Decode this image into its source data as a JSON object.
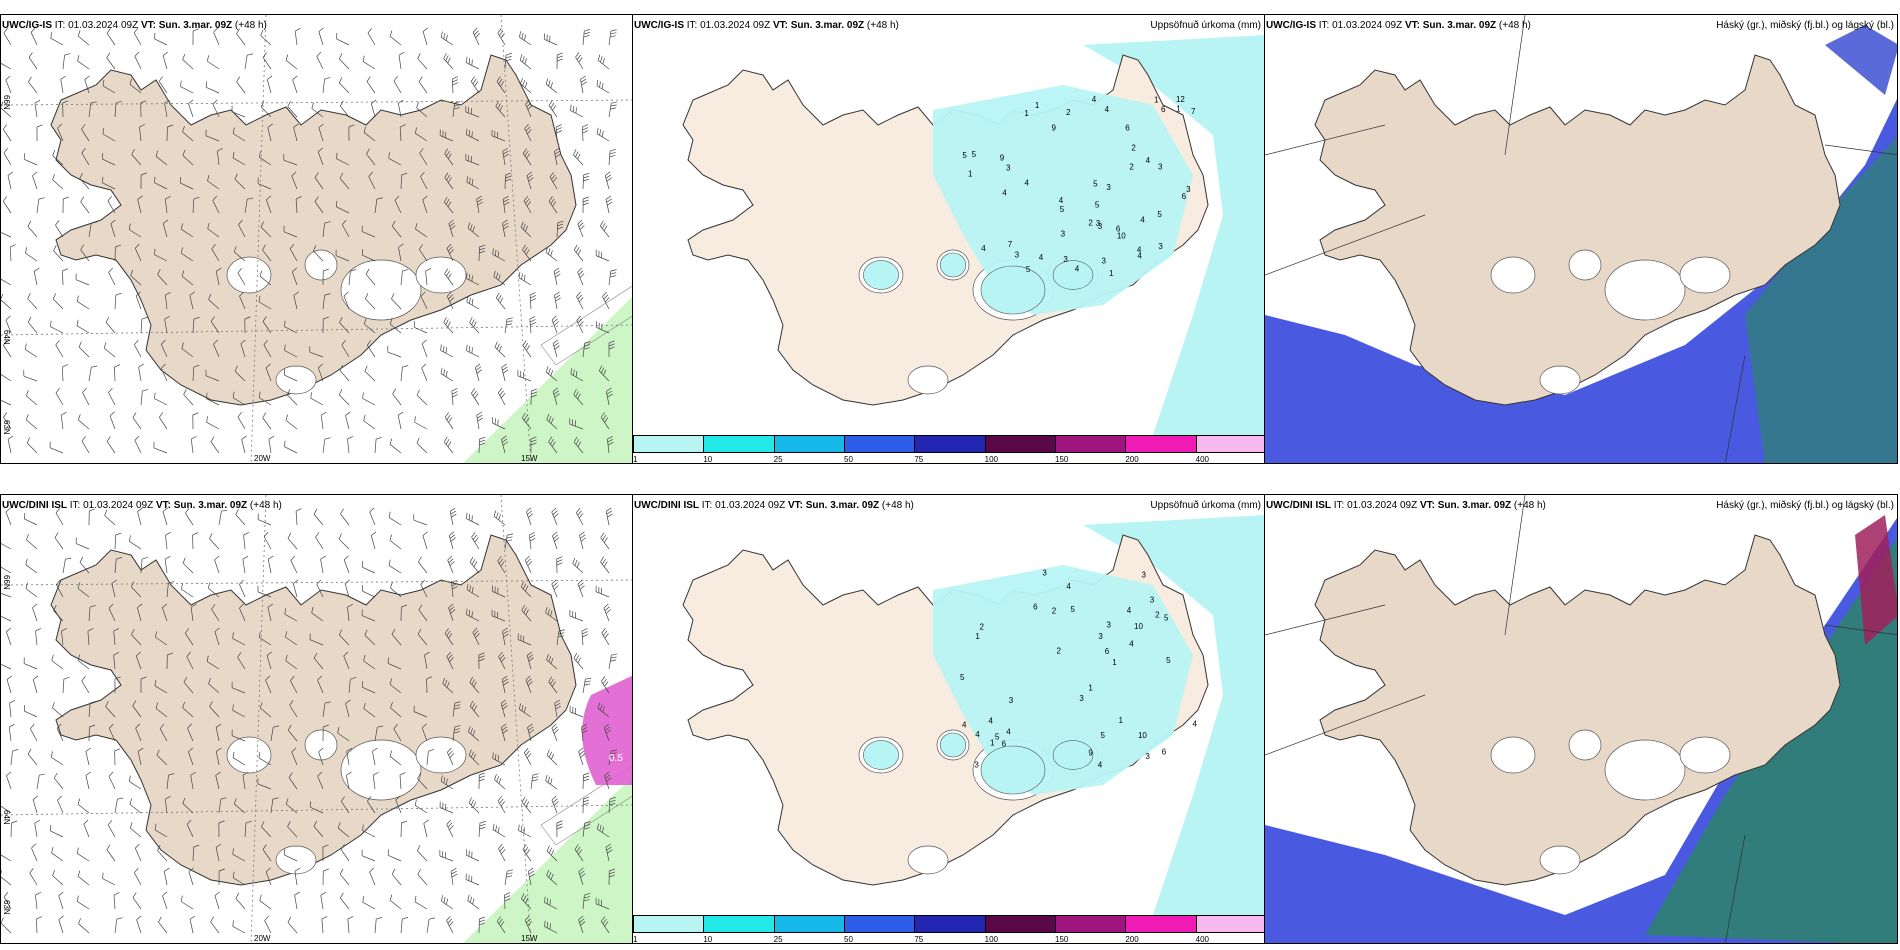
{
  "panels": [
    {
      "id": "tl",
      "model": "UWC/IG-IS",
      "it_label": "IT:",
      "it": "01.03.2024 09Z",
      "vt_label": "VT:",
      "vt": "Sun. 3.mar. 09Z",
      "lead": "(+48 h)",
      "right": ""
    },
    {
      "id": "tm",
      "model": "UWC/IG-IS",
      "it_label": "IT:",
      "it": "01.03.2024 09Z",
      "vt_label": "VT:",
      "vt": "Sun. 3.mar. 09Z",
      "lead": "(+48 h)",
      "right": "Uppsöfnuð úrkoma (mm)"
    },
    {
      "id": "tr",
      "model": "UWC/IG-IS",
      "it_label": "IT:",
      "it": "01.03.2024 09Z",
      "vt_label": "VT:",
      "vt": "Sun. 3.mar. 09Z",
      "lead": "(+48 h)",
      "right": "Háský (gr.), miðský (fj.bl.) og lágský (bl.)"
    },
    {
      "id": "bl",
      "model": "UWC/DINI ISL",
      "it_label": "IT:",
      "it": "01.03.2024 09Z",
      "vt_label": "VT:",
      "vt": "Sun. 3.mar. 09Z",
      "lead": "(+48 h)",
      "right": ""
    },
    {
      "id": "bm",
      "model": "UWC/DINI ISL",
      "it_label": "IT:",
      "it": "01.03.2024 09Z",
      "vt_label": "VT:",
      "vt": "Sun. 3.mar. 09Z",
      "lead": "(+48 h)",
      "right": "Uppsöfnuð úrkoma (mm)"
    },
    {
      "id": "br",
      "model": "UWC/DINI ISL",
      "it_label": "IT:",
      "it": "01.03.2024 09Z",
      "vt_label": "VT:",
      "vt": "Sun. 3.mar. 09Z",
      "lead": "(+48 h)",
      "right": "Háský (gr.), miðský (fj.bl.) og lágský (bl.)"
    }
  ],
  "axis_labels": {
    "lon_20w": "20W",
    "lon_15w": "15W",
    "lat_66n": "66N",
    "lat_64n": "64N",
    "lat_63n": "63N"
  },
  "colorbar": {
    "ticks": [
      "1",
      "10",
      "25",
      "50",
      "75",
      "100",
      "150",
      "200",
      "400"
    ],
    "colors": [
      "#b8f4f4",
      "#22e8e8",
      "#16b8e8",
      "#2c5ce8",
      "#2226b0",
      "#5a0846",
      "#a0147e",
      "#f01ab4",
      "#f8b8f0"
    ]
  },
  "precip_top": [
    "1",
    "1",
    "7",
    "9",
    "4",
    "3",
    "6",
    "4",
    "5",
    "3",
    "4",
    "5",
    "4",
    "3",
    "2",
    "1",
    "1",
    "6",
    "4",
    "3",
    "4",
    "3",
    "5",
    "4",
    "3",
    "2",
    "4",
    "3",
    "4",
    "9",
    "10",
    "12",
    "6",
    "4",
    "1",
    "3",
    "4",
    "5",
    "3",
    "6",
    "2",
    "5",
    "7",
    "3",
    "4",
    "5",
    "2",
    "3",
    "5",
    "1"
  ],
  "precip_bottom": [
    "1",
    "1",
    "5",
    "4",
    "3",
    "6",
    "3",
    "4",
    "5",
    "2",
    "4",
    "9",
    "10",
    "10",
    "1",
    "5",
    "3",
    "4",
    "3",
    "5",
    "6",
    "4",
    "3",
    "2",
    "4",
    "5",
    "4",
    "1",
    "3",
    "4",
    "5",
    "3",
    "4",
    "6",
    "2",
    "3",
    "1",
    "6",
    "3",
    "2"
  ],
  "contour_label_bl": "0.5",
  "colors": {
    "land": "#e8d8c8",
    "land_alt": "#f8ece0",
    "ocean": "#ffffff",
    "precip_sea": "#b8f4f4",
    "precip_land": "#b8f4f4",
    "high_cloud": "#2a8a5a",
    "mid_cloud": "#4a5ae0",
    "low_cloud": "#5a6ad8",
    "wind_green": "#c8f4c0",
    "pink": "#e060d0"
  }
}
